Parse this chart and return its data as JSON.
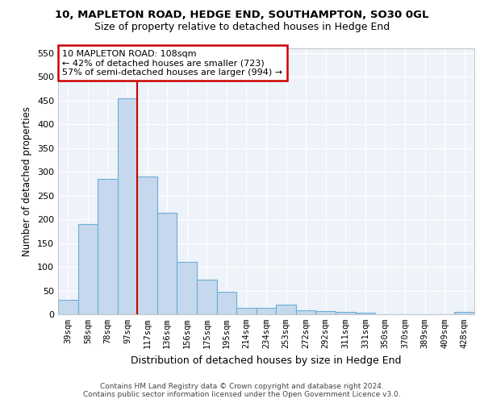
{
  "title": "10, MAPLETON ROAD, HEDGE END, SOUTHAMPTON, SO30 0GL",
  "subtitle": "Size of property relative to detached houses in Hedge End",
  "xlabel": "Distribution of detached houses by size in Hedge End",
  "ylabel": "Number of detached properties",
  "bar_labels": [
    "39sqm",
    "58sqm",
    "78sqm",
    "97sqm",
    "117sqm",
    "136sqm",
    "156sqm",
    "175sqm",
    "195sqm",
    "214sqm",
    "234sqm",
    "253sqm",
    "272sqm",
    "292sqm",
    "311sqm",
    "331sqm",
    "350sqm",
    "370sqm",
    "389sqm",
    "409sqm",
    "428sqm"
  ],
  "bar_values": [
    30,
    190,
    285,
    455,
    290,
    213,
    110,
    73,
    47,
    13,
    13,
    20,
    8,
    7,
    5,
    4,
    0,
    0,
    0,
    0,
    5
  ],
  "bar_color": "#c5d8ed",
  "bar_edge_color": "#6aaed6",
  "vline_color": "#cc0000",
  "annotation_line1": "10 MAPLETON ROAD: 108sqm",
  "annotation_line2": "← 42% of detached houses are smaller (723)",
  "annotation_line3": "57% of semi-detached houses are larger (994) →",
  "annotation_box_edge": "#cc0000",
  "ylim": [
    0,
    560
  ],
  "yticks": [
    0,
    50,
    100,
    150,
    200,
    250,
    300,
    350,
    400,
    450,
    500,
    550
  ],
  "background_color": "#eef2f9",
  "footer_line1": "Contains HM Land Registry data © Crown copyright and database right 2024.",
  "footer_line2": "Contains public sector information licensed under the Open Government Licence v3.0."
}
